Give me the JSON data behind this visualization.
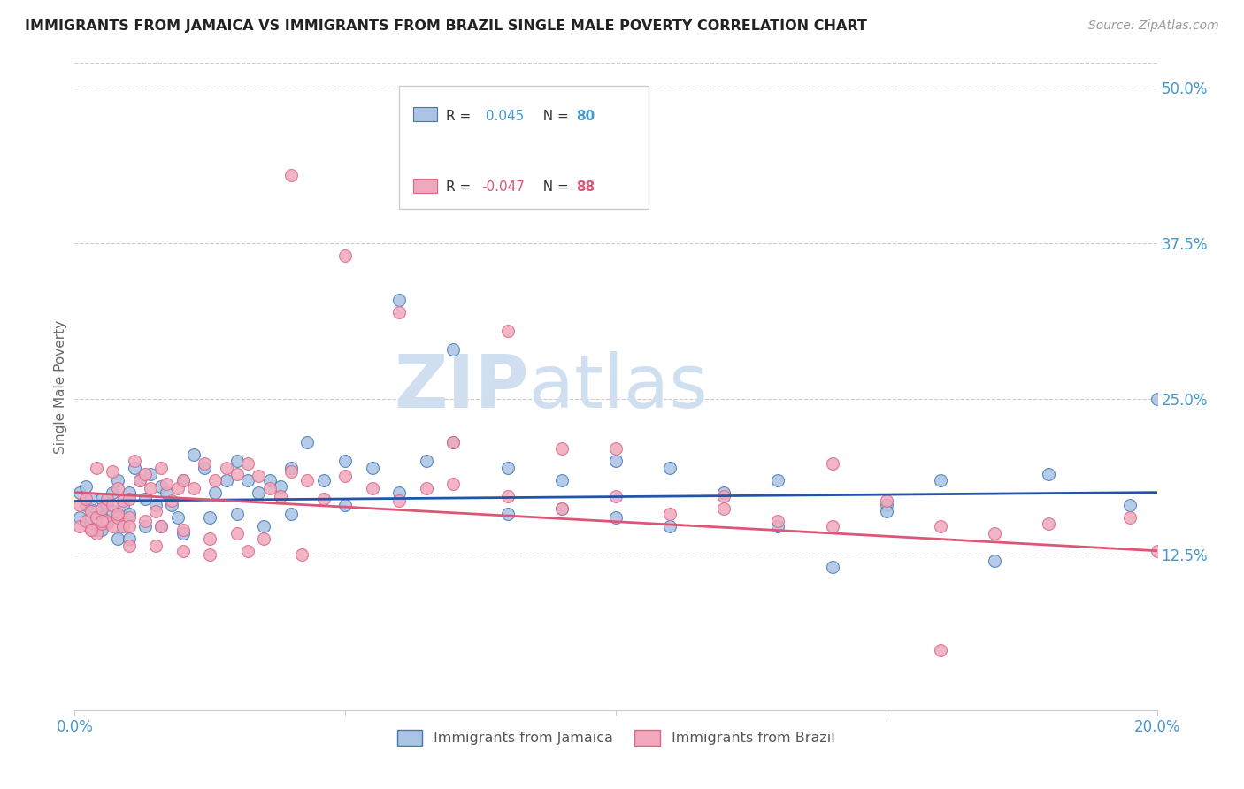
{
  "title": "IMMIGRANTS FROM JAMAICA VS IMMIGRANTS FROM BRAZIL SINGLE MALE POVERTY CORRELATION CHART",
  "source": "Source: ZipAtlas.com",
  "ylabel": "Single Male Poverty",
  "xlim": [
    0.0,
    0.2
  ],
  "ylim": [
    0.0,
    0.52
  ],
  "ytick_labels_right": [
    "50.0%",
    "37.5%",
    "25.0%",
    "12.5%"
  ],
  "ytick_positions_right": [
    0.5,
    0.375,
    0.25,
    0.125
  ],
  "legend_label_jamaica": "Immigrants from Jamaica",
  "legend_label_brazil": "Immigrants from Brazil",
  "color_jamaica": "#aac4e2",
  "color_brazil": "#f0a8bc",
  "color_edge_jamaica": "#4477bb",
  "color_edge_brazil": "#dd6688",
  "color_line_jamaica": "#2255aa",
  "color_line_brazil": "#dd5577",
  "color_title": "#222222",
  "color_source": "#999999",
  "color_axis_blue": "#4499cc",
  "color_grid": "#cccccc",
  "watermark_color": "#d0dff0",
  "jamaica_x": [
    0.001,
    0.001,
    0.002,
    0.002,
    0.003,
    0.003,
    0.004,
    0.004,
    0.005,
    0.005,
    0.006,
    0.006,
    0.007,
    0.007,
    0.008,
    0.008,
    0.009,
    0.009,
    0.01,
    0.01,
    0.011,
    0.012,
    0.013,
    0.014,
    0.015,
    0.016,
    0.017,
    0.018,
    0.019,
    0.02,
    0.022,
    0.024,
    0.026,
    0.028,
    0.03,
    0.032,
    0.034,
    0.036,
    0.038,
    0.04,
    0.043,
    0.046,
    0.05,
    0.055,
    0.06,
    0.065,
    0.07,
    0.08,
    0.09,
    0.1,
    0.11,
    0.12,
    0.13,
    0.14,
    0.15,
    0.16,
    0.17,
    0.18,
    0.195,
    0.2,
    0.003,
    0.005,
    0.008,
    0.01,
    0.013,
    0.016,
    0.02,
    0.025,
    0.03,
    0.035,
    0.04,
    0.05,
    0.06,
    0.07,
    0.08,
    0.09,
    0.1,
    0.11,
    0.13,
    0.15
  ],
  "jamaica_y": [
    0.175,
    0.155,
    0.18,
    0.165,
    0.17,
    0.15,
    0.16,
    0.145,
    0.17,
    0.155,
    0.165,
    0.15,
    0.175,
    0.16,
    0.185,
    0.155,
    0.165,
    0.148,
    0.175,
    0.158,
    0.195,
    0.185,
    0.17,
    0.19,
    0.165,
    0.18,
    0.175,
    0.165,
    0.155,
    0.185,
    0.205,
    0.195,
    0.175,
    0.185,
    0.2,
    0.185,
    0.175,
    0.185,
    0.18,
    0.195,
    0.215,
    0.185,
    0.2,
    0.195,
    0.175,
    0.2,
    0.215,
    0.195,
    0.185,
    0.2,
    0.195,
    0.175,
    0.185,
    0.115,
    0.165,
    0.185,
    0.12,
    0.19,
    0.165,
    0.25,
    0.155,
    0.145,
    0.138,
    0.138,
    0.148,
    0.148,
    0.142,
    0.155,
    0.158,
    0.148,
    0.158,
    0.165,
    0.33,
    0.29,
    0.158,
    0.162,
    0.155,
    0.148,
    0.148,
    0.16
  ],
  "brazil_x": [
    0.001,
    0.001,
    0.002,
    0.002,
    0.003,
    0.003,
    0.004,
    0.004,
    0.005,
    0.005,
    0.006,
    0.006,
    0.007,
    0.007,
    0.008,
    0.008,
    0.009,
    0.009,
    0.01,
    0.01,
    0.011,
    0.012,
    0.013,
    0.014,
    0.015,
    0.016,
    0.017,
    0.018,
    0.019,
    0.02,
    0.022,
    0.024,
    0.026,
    0.028,
    0.03,
    0.032,
    0.034,
    0.036,
    0.038,
    0.04,
    0.043,
    0.046,
    0.05,
    0.055,
    0.06,
    0.065,
    0.07,
    0.08,
    0.09,
    0.1,
    0.11,
    0.12,
    0.13,
    0.14,
    0.15,
    0.16,
    0.17,
    0.18,
    0.195,
    0.2,
    0.003,
    0.005,
    0.008,
    0.01,
    0.013,
    0.016,
    0.02,
    0.025,
    0.03,
    0.035,
    0.04,
    0.05,
    0.06,
    0.07,
    0.08,
    0.09,
    0.1,
    0.12,
    0.14,
    0.16,
    0.004,
    0.007,
    0.01,
    0.015,
    0.02,
    0.025,
    0.032,
    0.042
  ],
  "brazil_y": [
    0.165,
    0.148,
    0.17,
    0.152,
    0.16,
    0.145,
    0.155,
    0.142,
    0.162,
    0.15,
    0.17,
    0.152,
    0.165,
    0.148,
    0.178,
    0.155,
    0.168,
    0.148,
    0.17,
    0.155,
    0.2,
    0.185,
    0.19,
    0.178,
    0.16,
    0.195,
    0.182,
    0.168,
    0.178,
    0.185,
    0.178,
    0.198,
    0.185,
    0.195,
    0.19,
    0.198,
    0.188,
    0.178,
    0.172,
    0.192,
    0.185,
    0.17,
    0.188,
    0.178,
    0.168,
    0.178,
    0.182,
    0.172,
    0.162,
    0.172,
    0.158,
    0.162,
    0.152,
    0.148,
    0.168,
    0.148,
    0.142,
    0.15,
    0.155,
    0.128,
    0.145,
    0.152,
    0.158,
    0.148,
    0.152,
    0.148,
    0.145,
    0.138,
    0.142,
    0.138,
    0.43,
    0.365,
    0.32,
    0.215,
    0.305,
    0.21,
    0.21,
    0.172,
    0.198,
    0.048,
    0.195,
    0.192,
    0.132,
    0.132,
    0.128,
    0.125,
    0.128,
    0.125
  ],
  "line_jamaica": [
    0.168,
    0.175
  ],
  "line_brazil": [
    0.175,
    0.128
  ]
}
